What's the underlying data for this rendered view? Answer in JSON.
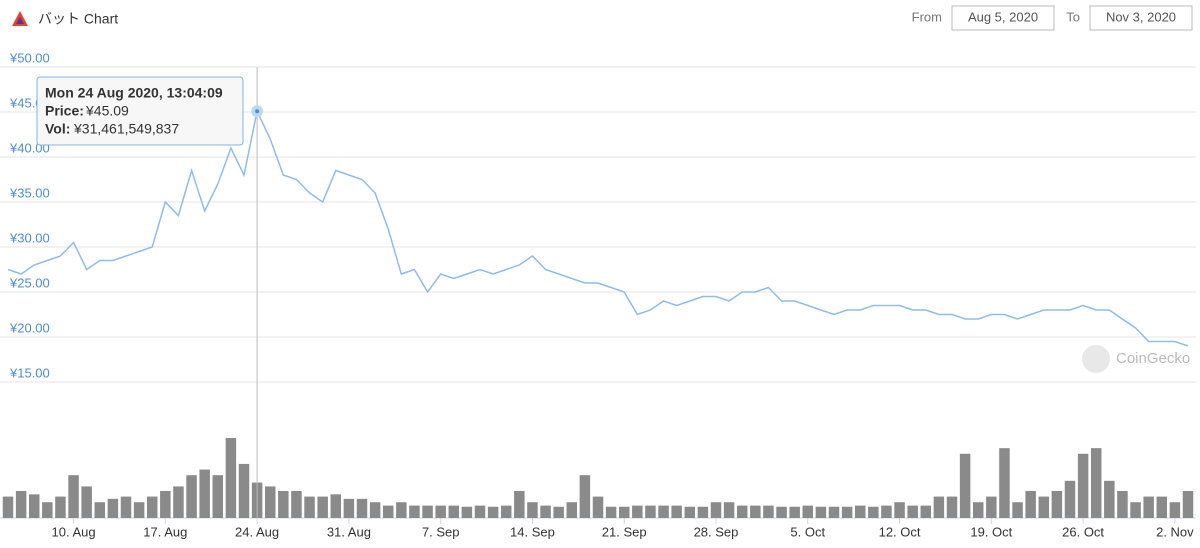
{
  "header": {
    "title": "バット Chart",
    "from_label": "From",
    "from_value": "Aug 5, 2020",
    "to_label": "To",
    "to_value": "Nov 3, 2020"
  },
  "watermark": "CoinGecko",
  "tooltip": {
    "title": "Mon 24 Aug 2020, 13:04:09",
    "rows": [
      {
        "label": "Price:",
        "value": "¥45.09"
      },
      {
        "label": "Vol:",
        "value": "¥31,461,549,837"
      }
    ],
    "x": "2020-08-24"
  },
  "chart_data": {
    "type": "line",
    "x": [
      "2020-08-05",
      "2020-08-06",
      "2020-08-07",
      "2020-08-08",
      "2020-08-09",
      "2020-08-10",
      "2020-08-11",
      "2020-08-12",
      "2020-08-13",
      "2020-08-14",
      "2020-08-15",
      "2020-08-16",
      "2020-08-17",
      "2020-08-18",
      "2020-08-19",
      "2020-08-20",
      "2020-08-21",
      "2020-08-22",
      "2020-08-23",
      "2020-08-24",
      "2020-08-25",
      "2020-08-26",
      "2020-08-27",
      "2020-08-28",
      "2020-08-29",
      "2020-08-30",
      "2020-08-31",
      "2020-09-01",
      "2020-09-02",
      "2020-09-03",
      "2020-09-04",
      "2020-09-05",
      "2020-09-06",
      "2020-09-07",
      "2020-09-08",
      "2020-09-09",
      "2020-09-10",
      "2020-09-11",
      "2020-09-12",
      "2020-09-13",
      "2020-09-14",
      "2020-09-15",
      "2020-09-16",
      "2020-09-17",
      "2020-09-18",
      "2020-09-19",
      "2020-09-20",
      "2020-09-21",
      "2020-09-22",
      "2020-09-23",
      "2020-09-24",
      "2020-09-25",
      "2020-09-26",
      "2020-09-27",
      "2020-09-28",
      "2020-09-29",
      "2020-09-30",
      "2020-10-01",
      "2020-10-02",
      "2020-10-03",
      "2020-10-04",
      "2020-10-05",
      "2020-10-06",
      "2020-10-07",
      "2020-10-08",
      "2020-10-09",
      "2020-10-10",
      "2020-10-11",
      "2020-10-12",
      "2020-10-13",
      "2020-10-14",
      "2020-10-15",
      "2020-10-16",
      "2020-10-17",
      "2020-10-18",
      "2020-10-19",
      "2020-10-20",
      "2020-10-21",
      "2020-10-22",
      "2020-10-23",
      "2020-10-24",
      "2020-10-25",
      "2020-10-26",
      "2020-10-27",
      "2020-10-28",
      "2020-10-29",
      "2020-10-30",
      "2020-10-31",
      "2020-11-01",
      "2020-11-02",
      "2020-11-03"
    ],
    "series": [
      {
        "name": "Price",
        "color": "#8fbde9",
        "values": [
          27.5,
          27,
          28,
          28.5,
          29,
          30.5,
          27.5,
          28.5,
          28.5,
          29,
          29.5,
          30,
          35,
          33.5,
          38.5,
          34,
          37,
          41,
          38,
          45.09,
          42,
          38,
          37.5,
          36,
          35,
          38.5,
          38,
          37.5,
          36,
          32,
          27,
          27.5,
          25,
          27,
          26.5,
          27,
          27.5,
          27,
          27.5,
          28,
          29,
          27.5,
          27,
          26.5,
          26,
          26,
          25.5,
          25,
          22.5,
          23,
          24,
          23.5,
          24,
          24.5,
          24.5,
          24,
          25,
          25,
          25.5,
          24,
          24,
          23.5,
          23,
          22.5,
          23,
          23,
          23.5,
          23.5,
          23.5,
          23,
          23,
          22.5,
          22.5,
          22,
          22,
          22.5,
          22.5,
          22,
          22.5,
          23,
          23,
          23,
          23.5,
          23,
          23,
          22,
          21,
          19.5,
          19.5,
          19.5,
          19
        ]
      },
      {
        "name": "Vol",
        "color": "#8a8a8a",
        "values": [
          19000000000,
          24000000000,
          21000000000,
          14000000000,
          19000000000,
          38000000000,
          28000000000,
          14000000000,
          17000000000,
          19000000000,
          14000000000,
          19000000000,
          24000000000,
          28000000000,
          38000000000,
          43000000000,
          38000000000,
          71000000000,
          48000000000,
          31461549837,
          28000000000,
          24000000000,
          24000000000,
          19000000000,
          19000000000,
          21000000000,
          17000000000,
          17000000000,
          14000000000,
          11000000000,
          14000000000,
          11000000000,
          11000000000,
          11000000000,
          11000000000,
          10000000000,
          11000000000,
          10000000000,
          11000000000,
          24000000000,
          14000000000,
          11000000000,
          10000000000,
          14000000000,
          38000000000,
          19000000000,
          10000000000,
          10000000000,
          11000000000,
          11000000000,
          11000000000,
          11000000000,
          10000000000,
          10000000000,
          14000000000,
          14000000000,
          11000000000,
          11000000000,
          11000000000,
          10000000000,
          10000000000,
          11000000000,
          10000000000,
          10000000000,
          10000000000,
          11000000000,
          10000000000,
          11000000000,
          14000000000,
          11000000000,
          11000000000,
          19000000000,
          19000000000,
          57000000000,
          14000000000,
          19000000000,
          62000000000,
          14000000000,
          24000000000,
          19000000000,
          24000000000,
          33000000000,
          57000000000,
          62000000000,
          33000000000,
          24000000000,
          14000000000,
          19000000000,
          19000000000,
          14000000000,
          24000000000
        ]
      }
    ],
    "ylim": [
      15,
      50
    ],
    "yticks": [
      {
        "value": 15,
        "label": "¥15.00"
      },
      {
        "value": 20,
        "label": "¥20.00"
      },
      {
        "value": 25,
        "label": "¥25.00"
      },
      {
        "value": 30,
        "label": "¥30.00"
      },
      {
        "value": 35,
        "label": "¥35.00"
      },
      {
        "value": 40,
        "label": "¥40.00"
      },
      {
        "value": 45,
        "label": "¥45.00"
      },
      {
        "value": 50,
        "label": "¥50.00"
      }
    ],
    "xlim": [
      "2020-08-05",
      "2020-11-03"
    ],
    "xticks": [
      {
        "value": "2020-08-10",
        "label": "10. Aug"
      },
      {
        "value": "2020-08-17",
        "label": "17. Aug"
      },
      {
        "value": "2020-08-24",
        "label": "24. Aug"
      },
      {
        "value": "2020-08-31",
        "label": "31. Aug"
      },
      {
        "value": "2020-09-07",
        "label": "7. Sep"
      },
      {
        "value": "2020-09-14",
        "label": "14. Sep"
      },
      {
        "value": "2020-09-21",
        "label": "21. Sep"
      },
      {
        "value": "2020-09-28",
        "label": "28. Sep"
      },
      {
        "value": "2020-10-05",
        "label": "5. Oct"
      },
      {
        "value": "2020-10-12",
        "label": "12. Oct"
      },
      {
        "value": "2020-10-19",
        "label": "19. Oct"
      },
      {
        "value": "2020-10-26",
        "label": "26. Oct"
      },
      {
        "value": "2020-11-02",
        "label": "2. Nov"
      }
    ],
    "grid": true
  }
}
